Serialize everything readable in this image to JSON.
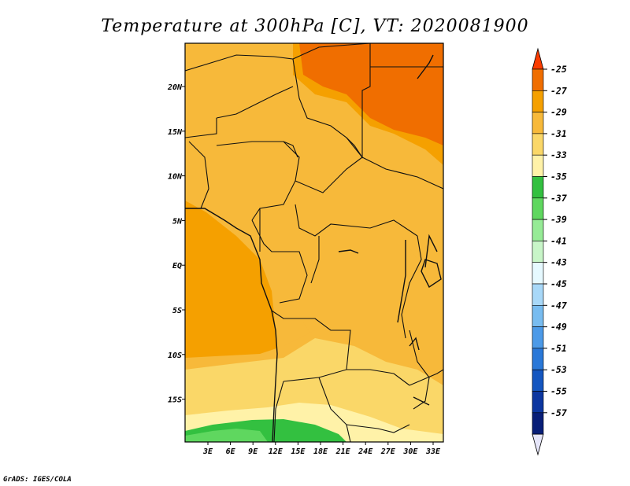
{
  "title": "Temperature at 300hPa [C], VT: 2020081900",
  "credit": "GrADS: IGES/COLA",
  "lat_labels": [
    "20N",
    "15N",
    "10N",
    "5N",
    "EQ",
    "5S",
    "10S",
    "15S"
  ],
  "lon_labels": [
    "3E",
    "6E",
    "9E",
    "12E",
    "15E",
    "18E",
    "21E",
    "24E",
    "27E",
    "30E",
    "33E"
  ],
  "colorbar": {
    "labels": [
      "-25",
      "-27",
      "-29",
      "-31",
      "-33",
      "-35",
      "-37",
      "-39",
      "-41",
      "-43",
      "-45",
      "-47",
      "-49",
      "-51",
      "-53",
      "-55",
      "-57"
    ],
    "colors": [
      "#fa3c00",
      "#f06e00",
      "#f5a000",
      "#f7b93a",
      "#fad768",
      "#fff2a8",
      "#33c040",
      "#5fd75f",
      "#96eb96",
      "#c8f5c8",
      "#e6f9ff",
      "#a8d8f8",
      "#78bcf0",
      "#4c9ae8",
      "#2a78d8",
      "#1456c0",
      "#0c36a0",
      "#081e78",
      "#e6e6fa"
    ]
  },
  "field_colors": {
    "t27": "#f06e00",
    "t29": "#f5a000",
    "t31": "#f7b93a",
    "t33": "#fad768",
    "t35": "#fff2a8",
    "t37": "#33c040",
    "t39": "#5fd75f"
  }
}
